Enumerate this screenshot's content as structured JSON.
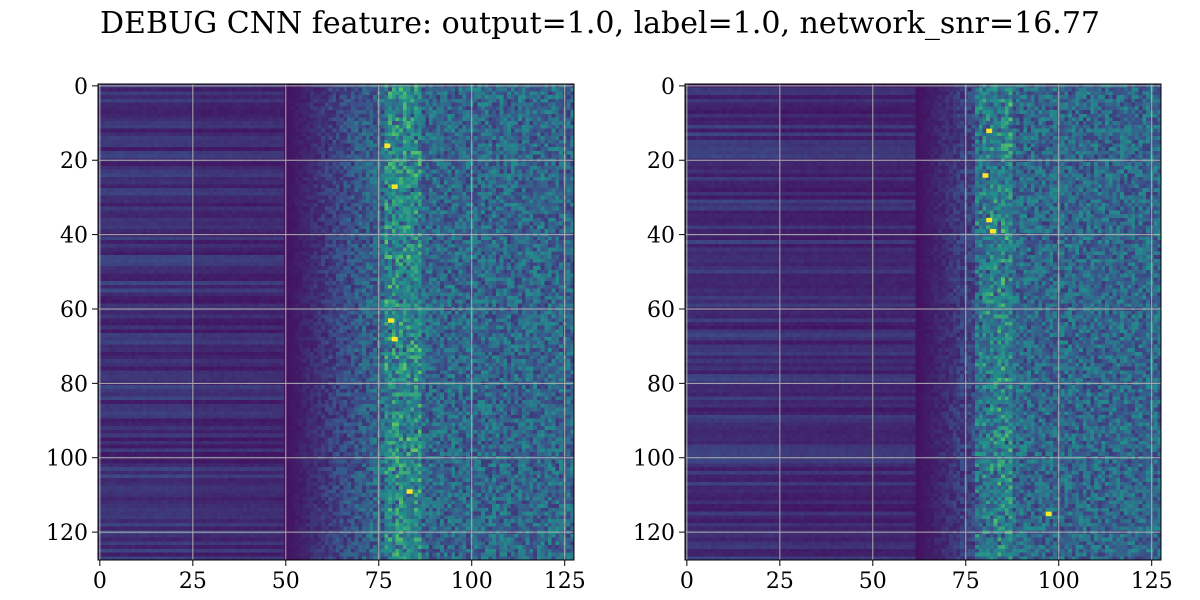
{
  "title": "DEBUG CNN feature: output=1.0, label=1.0, network_snr=16.77",
  "colormap": [
    "#440154",
    "#3b528b",
    "#21918c",
    "#5ec962",
    "#fde725"
  ],
  "chart_data": [
    {
      "type": "heatmap",
      "shape": [
        128,
        128
      ],
      "xlim": [
        -0.5,
        127.5
      ],
      "ylim": [
        127.5,
        -0.5
      ],
      "xticks": [
        0,
        25,
        50,
        75,
        100,
        125
      ],
      "yticks": [
        0,
        20,
        40,
        60,
        80,
        100,
        120
      ],
      "xtick_labels": [
        "0",
        "25",
        "50",
        "75",
        "100",
        "125"
      ],
      "ytick_labels": [
        "0",
        "20",
        "40",
        "60",
        "80",
        "100",
        "120"
      ],
      "grid": true,
      "bright_column": 77,
      "activation_onset_column": 50,
      "hotspots": [
        {
          "x": 79,
          "y": 27
        },
        {
          "x": 78,
          "y": 63
        },
        {
          "x": 79,
          "y": 68
        },
        {
          "x": 77,
          "y": 16
        },
        {
          "x": 83,
          "y": 109
        }
      ]
    },
    {
      "type": "heatmap",
      "shape": [
        128,
        128
      ],
      "xlim": [
        -0.5,
        127.5
      ],
      "ylim": [
        127.5,
        -0.5
      ],
      "xticks": [
        0,
        25,
        50,
        75,
        100,
        125
      ],
      "yticks": [
        0,
        20,
        40,
        60,
        80,
        100,
        120
      ],
      "xtick_labels": [
        "0",
        "25",
        "50",
        "75",
        "100",
        "125"
      ],
      "ytick_labels": [
        "0",
        "20",
        "40",
        "60",
        "80",
        "100",
        "120"
      ],
      "grid": true,
      "bright_column": 78,
      "activation_onset_column": 62,
      "hotspots": [
        {
          "x": 81,
          "y": 36
        },
        {
          "x": 80,
          "y": 24
        },
        {
          "x": 82,
          "y": 39
        },
        {
          "x": 97,
          "y": 115
        },
        {
          "x": 81,
          "y": 12
        }
      ]
    }
  ]
}
